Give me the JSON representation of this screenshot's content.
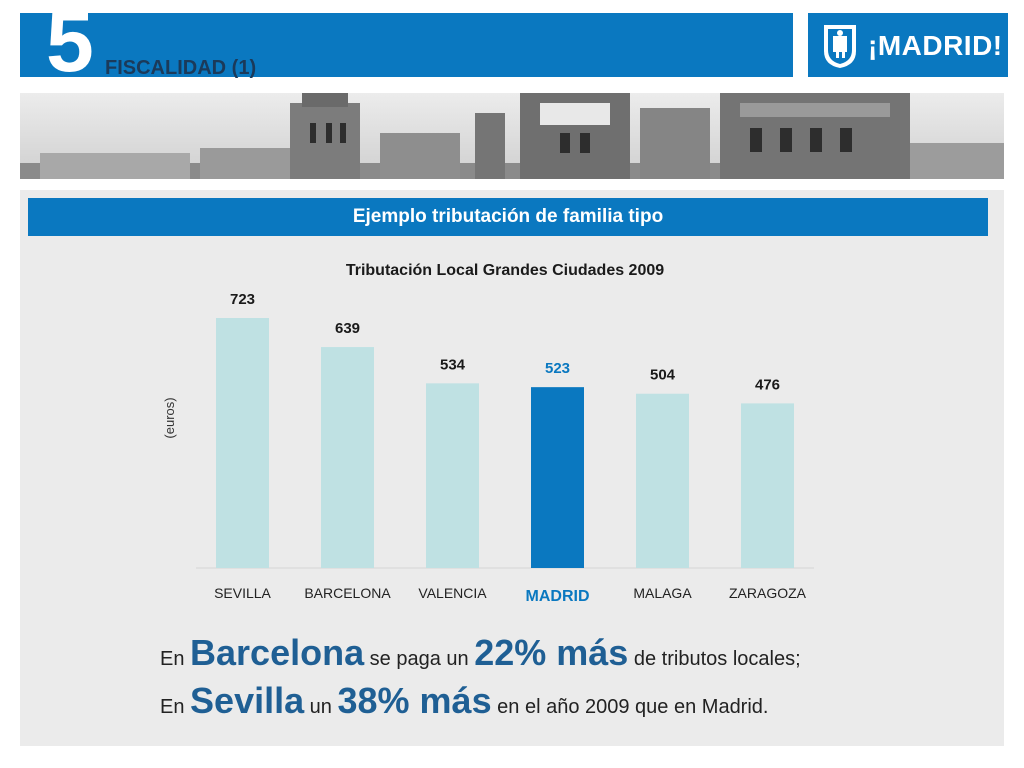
{
  "header": {
    "section_number": "5",
    "section_title": "FISCALIDAD (1)",
    "logo_text": "¡MADRID!",
    "brand_color": "#0a78c0"
  },
  "panel": {
    "title": "Ejemplo tributación de familia tipo"
  },
  "chart_data": {
    "type": "bar",
    "title": "Tributación Local Grandes Ciudades 2009",
    "xlabel": "",
    "ylabel": "(euros)",
    "categories": [
      "SEVILLA",
      "BARCELONA",
      "VALENCIA",
      "MADRID",
      "MALAGA",
      "ZARAGOZA"
    ],
    "values": [
      723,
      639,
      534,
      523,
      504,
      476
    ],
    "ylim": [
      0,
      723
    ],
    "highlight_index": 3,
    "bar_color": "#bfe1e3",
    "highlight_color": "#0a78c0",
    "label_color": "#1a1a1a",
    "highlight_label_color": "#0a78c0",
    "grid": false,
    "legend": "none"
  },
  "statements": [
    {
      "parts": [
        {
          "text": "En ",
          "style": "small"
        },
        {
          "text": "Barcelona",
          "style": "big"
        },
        {
          "text": " se paga un ",
          "style": "small"
        },
        {
          "text": "22% más",
          "style": "big"
        },
        {
          "text": " de tributos locales;",
          "style": "small"
        }
      ]
    },
    {
      "parts": [
        {
          "text": "En ",
          "style": "small"
        },
        {
          "text": "Sevilla",
          "style": "big"
        },
        {
          "text": " un ",
          "style": "small"
        },
        {
          "text": "38% más",
          "style": "big"
        },
        {
          "text": " en el año 2009 que en Madrid.",
          "style": "small"
        }
      ]
    }
  ]
}
